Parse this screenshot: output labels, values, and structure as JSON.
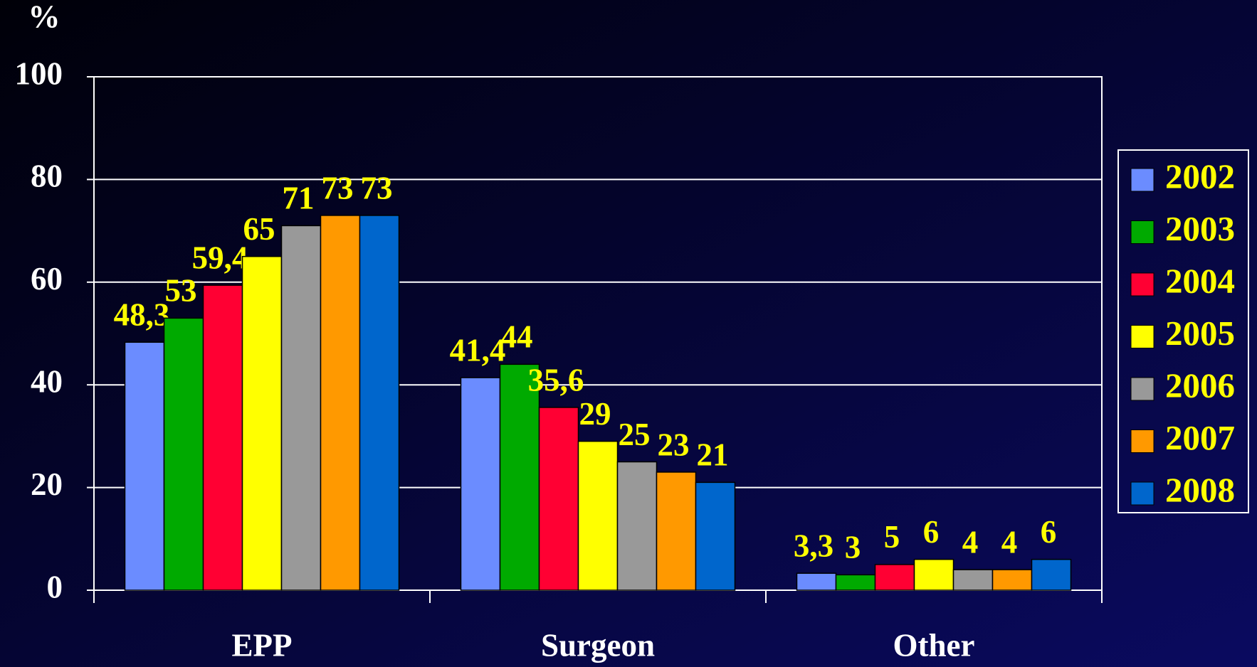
{
  "chart_data": {
    "type": "bar",
    "y_label": "%",
    "categories": [
      "EPP",
      "Surgeon",
      "Other"
    ],
    "series": [
      {
        "name": "2002",
        "color": "#6b8cff",
        "values": [
          48.3,
          41.4,
          3.3
        ],
        "value_labels": [
          "48,3",
          "41,4",
          "3,3"
        ]
      },
      {
        "name": "2003",
        "color": "#00aa00",
        "values": [
          53,
          44,
          3
        ]
      },
      {
        "name": "2004",
        "color": "#ff0033",
        "values": [
          59.4,
          35.6,
          5
        ],
        "value_labels": [
          "59,4",
          "35,6",
          "5"
        ]
      },
      {
        "name": "2005",
        "color": "#ffff00",
        "values": [
          65,
          29,
          6
        ]
      },
      {
        "name": "2006",
        "color": "#999999",
        "values": [
          71,
          25,
          4
        ]
      },
      {
        "name": "2007",
        "color": "#ff9900",
        "values": [
          73,
          23,
          4
        ]
      },
      {
        "name": "2008",
        "color": "#0066cc",
        "values": [
          73,
          21,
          6
        ]
      }
    ],
    "ylim": [
      0,
      100
    ],
    "yticks": [
      0,
      20,
      40,
      60,
      80,
      100
    ],
    "grid": true,
    "legend": "right"
  }
}
